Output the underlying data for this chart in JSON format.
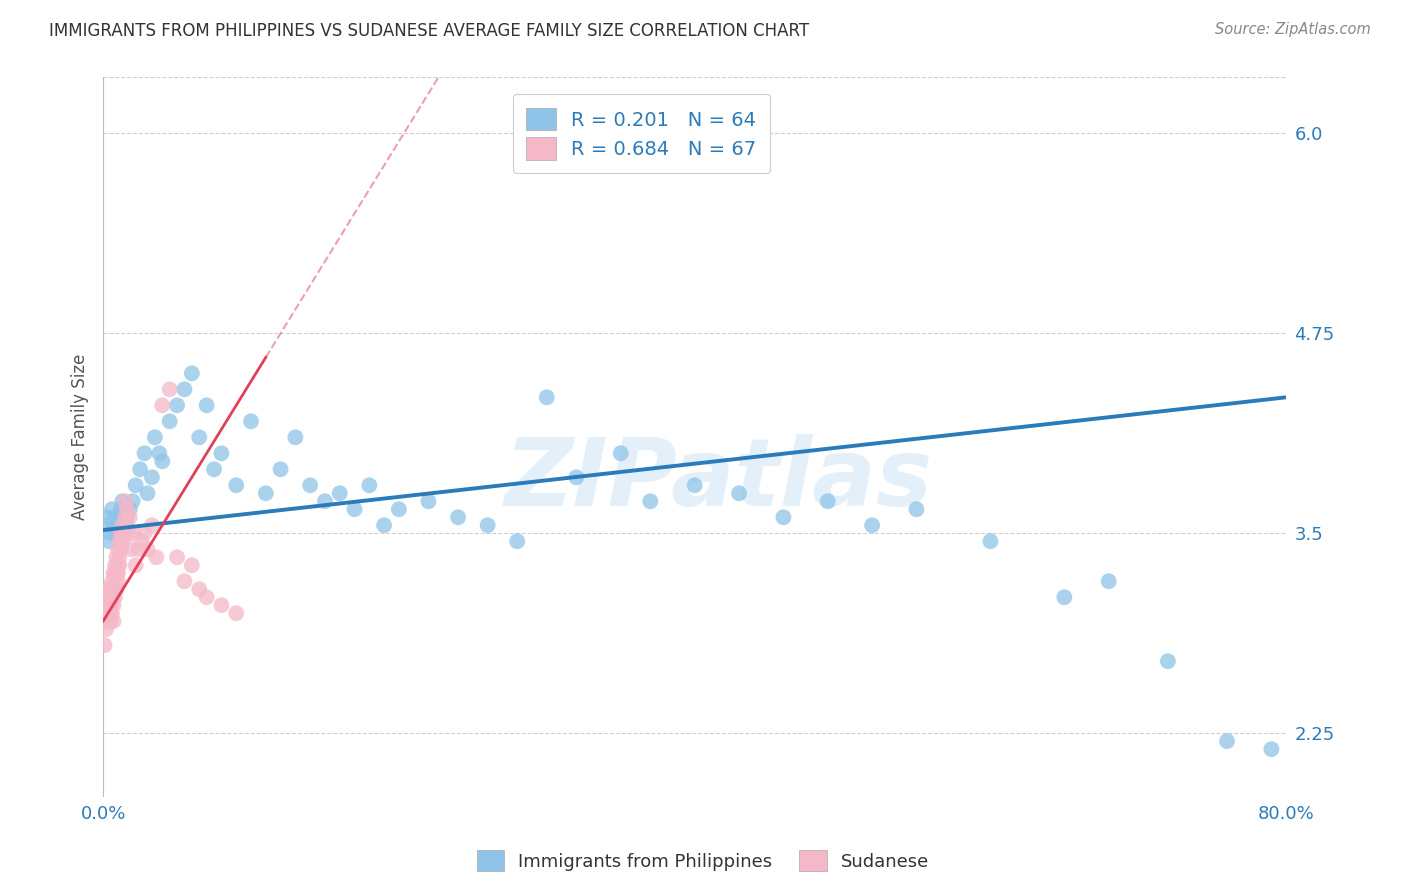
{
  "title": "IMMIGRANTS FROM PHILIPPINES VS SUDANESE AVERAGE FAMILY SIZE CORRELATION CHART",
  "source": "Source: ZipAtlas.com",
  "ylabel": "Average Family Size",
  "watermark": "ZIPatlas",
  "legend1_label": "R = 0.201   N = 64",
  "legend2_label": "R = 0.684   N = 67",
  "bottom_label1": "Immigrants from Philippines",
  "bottom_label2": "Sudanese",
  "xlim": [
    0.0,
    0.8
  ],
  "ylim": [
    1.85,
    6.35
  ],
  "yticks": [
    2.25,
    3.5,
    4.75,
    6.0
  ],
  "color_blue": "#8ec4e8",
  "color_pink": "#f5b8c8",
  "color_blue_line": "#2b7bba",
  "color_pink_line": "#e0405a",
  "title_color": "#333333",
  "axis_color": "#2b7bba",
  "grid_color": "#d0d0d0",
  "philippines_x": [
    0.002,
    0.003,
    0.004,
    0.005,
    0.006,
    0.007,
    0.008,
    0.009,
    0.01,
    0.011,
    0.012,
    0.013,
    0.015,
    0.016,
    0.018,
    0.02,
    0.022,
    0.025,
    0.028,
    0.03,
    0.033,
    0.035,
    0.038,
    0.04,
    0.045,
    0.05,
    0.055,
    0.06,
    0.065,
    0.07,
    0.075,
    0.08,
    0.09,
    0.1,
    0.11,
    0.12,
    0.13,
    0.14,
    0.15,
    0.16,
    0.17,
    0.18,
    0.19,
    0.2,
    0.22,
    0.24,
    0.26,
    0.28,
    0.3,
    0.32,
    0.35,
    0.37,
    0.4,
    0.43,
    0.46,
    0.49,
    0.52,
    0.55,
    0.6,
    0.65,
    0.68,
    0.72,
    0.76,
    0.79
  ],
  "philippines_y": [
    3.55,
    3.6,
    3.45,
    3.5,
    3.65,
    3.55,
    3.6,
    3.5,
    3.55,
    3.6,
    3.65,
    3.7,
    3.55,
    3.6,
    3.65,
    3.7,
    3.8,
    3.9,
    4.0,
    3.75,
    3.85,
    4.1,
    4.0,
    3.95,
    4.2,
    4.3,
    4.4,
    4.5,
    4.1,
    4.3,
    3.9,
    4.0,
    3.8,
    4.2,
    3.75,
    3.9,
    4.1,
    3.8,
    3.7,
    3.75,
    3.65,
    3.8,
    3.55,
    3.65,
    3.7,
    3.6,
    3.55,
    3.45,
    4.35,
    3.85,
    4.0,
    3.7,
    3.8,
    3.75,
    3.6,
    3.7,
    3.55,
    3.65,
    3.45,
    3.1,
    3.2,
    2.7,
    2.2,
    2.15
  ],
  "sudanese_x": [
    0.001,
    0.002,
    0.002,
    0.003,
    0.003,
    0.004,
    0.004,
    0.005,
    0.005,
    0.005,
    0.006,
    0.006,
    0.006,
    0.007,
    0.007,
    0.007,
    0.007,
    0.008,
    0.008,
    0.008,
    0.008,
    0.009,
    0.009,
    0.009,
    0.01,
    0.01,
    0.01,
    0.01,
    0.011,
    0.011,
    0.011,
    0.012,
    0.012,
    0.013,
    0.013,
    0.014,
    0.015,
    0.015,
    0.016,
    0.016,
    0.017,
    0.018,
    0.019,
    0.02,
    0.022,
    0.024,
    0.026,
    0.028,
    0.03,
    0.033,
    0.036,
    0.04,
    0.045,
    0.05,
    0.055,
    0.06,
    0.065,
    0.07,
    0.08,
    0.09,
    0.001,
    0.002,
    0.003,
    0.004,
    0.005,
    0.006,
    0.007
  ],
  "sudanese_y": [
    3.0,
    3.1,
    2.9,
    3.05,
    3.15,
    3.0,
    3.1,
    3.05,
    3.15,
    2.95,
    3.0,
    3.1,
    3.2,
    3.05,
    3.1,
    3.15,
    3.25,
    3.1,
    3.2,
    3.25,
    3.3,
    3.15,
    3.25,
    3.35,
    3.2,
    3.3,
    3.4,
    3.25,
    3.35,
    3.45,
    3.3,
    3.4,
    3.5,
    3.45,
    3.55,
    3.5,
    3.6,
    3.7,
    3.65,
    3.55,
    3.5,
    3.6,
    3.4,
    3.5,
    3.3,
    3.4,
    3.45,
    3.5,
    3.4,
    3.55,
    3.35,
    4.3,
    4.4,
    3.35,
    3.2,
    3.3,
    3.15,
    3.1,
    3.05,
    3.0,
    2.8,
    2.95,
    3.05,
    3.15,
    3.0,
    3.1,
    2.95
  ],
  "blue_line_x0": 0.0,
  "blue_line_y0": 3.52,
  "blue_line_x1": 0.8,
  "blue_line_y1": 4.35,
  "pink_line_x0": 0.0,
  "pink_line_y0": 2.95,
  "pink_line_x1": 0.11,
  "pink_line_y1": 4.6
}
